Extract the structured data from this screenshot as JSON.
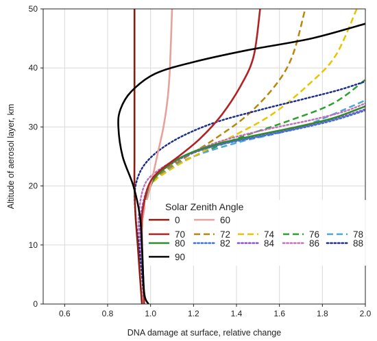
{
  "chart_data": {
    "type": "line",
    "title": "",
    "xlabel": "DNA damage at surface, relative change",
    "ylabel": "Altitude of aerosol layer, km",
    "xlim": [
      0.5,
      2.0
    ],
    "ylim": [
      0,
      50
    ],
    "xticks": [
      0.6,
      0.8,
      1.0,
      1.2,
      1.4,
      1.6,
      1.8,
      2.0
    ],
    "xtick_labels": [
      "0.6",
      "0.8",
      "1.0",
      "1.2",
      "1.4",
      "1.6",
      "1.8",
      "2.0"
    ],
    "yticks": [
      0,
      10,
      20,
      30,
      40,
      50
    ],
    "ytick_labels": [
      "0",
      "10",
      "20",
      "30",
      "40",
      "50"
    ],
    "grid": true,
    "legend": {
      "title": "Solar Zenith Angle",
      "placement": "center-right"
    },
    "series": [
      {
        "name": "0",
        "color": "#8b1a10",
        "dash": "solid",
        "x": [
          0.96,
          0.95,
          0.94,
          0.93,
          0.925,
          0.925,
          0.925,
          0.925,
          0.925
        ],
        "y": [
          0,
          5,
          10,
          15,
          20,
          25,
          30,
          40,
          50
        ]
      },
      {
        "name": "60",
        "color": "#e8a09a",
        "dash": "solid",
        "x": [
          0.97,
          0.965,
          0.96,
          0.965,
          1.0,
          1.03,
          1.06,
          1.08,
          1.09,
          1.1
        ],
        "y": [
          0,
          5,
          10,
          15,
          20,
          25,
          30,
          35,
          40,
          50
        ]
      },
      {
        "name": "70",
        "color": "#b22222",
        "dash": "solid",
        "x": [
          0.97,
          0.965,
          0.96,
          0.96,
          0.99,
          1.04,
          1.13,
          1.23,
          1.33,
          1.42,
          1.48,
          1.51
        ],
        "y": [
          0,
          5,
          10,
          15,
          20,
          22.5,
          25,
          28,
          32,
          37,
          42,
          50
        ]
      },
      {
        "name": "72",
        "color": "#b8860b",
        "dash": "dash",
        "x": [
          0.97,
          0.965,
          0.96,
          0.965,
          1.0,
          1.06,
          1.17,
          1.3,
          1.45,
          1.58,
          1.66,
          1.72
        ],
        "y": [
          0,
          5,
          10,
          15,
          20,
          22.5,
          25,
          28,
          32,
          37,
          42,
          50
        ]
      },
      {
        "name": "74",
        "color": "#e8c400",
        "dash": "dash",
        "x": [
          0.97,
          0.965,
          0.96,
          0.965,
          1.0,
          1.08,
          1.2,
          1.36,
          1.56,
          1.73,
          1.86,
          1.96
        ],
        "y": [
          0,
          5,
          10,
          15,
          20,
          22.5,
          25,
          28,
          32,
          37,
          42,
          50
        ]
      },
      {
        "name": "76",
        "color": "#2ca02c",
        "dash": "dash",
        "x": [
          0.97,
          0.965,
          0.96,
          0.965,
          1.0,
          1.07,
          1.2,
          1.4,
          1.64,
          1.85,
          2.0
        ],
        "y": [
          0,
          5,
          10,
          15,
          20,
          22.5,
          25,
          28,
          31,
          34,
          38
        ]
      },
      {
        "name": "78",
        "color": "#4aa8d8",
        "dash": "dash",
        "x": [
          0.97,
          0.965,
          0.96,
          0.965,
          1.0,
          1.07,
          1.2,
          1.42,
          1.7,
          2.0
        ],
        "y": [
          0,
          5,
          10,
          15,
          20,
          22.5,
          25,
          27.5,
          30,
          34.5
        ]
      },
      {
        "name": "80",
        "color": "#2e8b2e",
        "dash": "solid",
        "x": [
          0.97,
          0.965,
          0.96,
          0.965,
          1.0,
          1.05,
          1.15,
          1.3,
          1.48,
          1.68,
          1.85,
          2.0
        ],
        "y": [
          0,
          5,
          10,
          15,
          20,
          22.5,
          25,
          27,
          28.5,
          30,
          31.5,
          33.5
        ]
      },
      {
        "name": "82",
        "color": "#3d6fd6",
        "dash": "dot",
        "x": [
          0.97,
          0.965,
          0.96,
          0.965,
          1.0,
          1.05,
          1.15,
          1.3,
          1.5,
          1.7,
          1.86,
          2.0
        ],
        "y": [
          0,
          5,
          10,
          15,
          20,
          22.5,
          25,
          26.8,
          28.3,
          29.8,
          31.2,
          32.8
        ]
      },
      {
        "name": "84",
        "color": "#8a4fd0",
        "dash": "dot",
        "x": [
          0.97,
          0.965,
          0.955,
          0.955,
          0.99,
          1.05,
          1.16,
          1.32,
          1.52,
          1.72,
          1.88,
          2.0
        ],
        "y": [
          0,
          5,
          10,
          15,
          20,
          22.5,
          25,
          27,
          28.6,
          30.1,
          31.6,
          33
        ]
      },
      {
        "name": "86",
        "color": "#c070b8",
        "dash": "dot",
        "x": [
          0.97,
          0.96,
          0.95,
          0.945,
          0.97,
          1.03,
          1.15,
          1.32,
          1.53,
          1.75,
          1.9,
          2.0
        ],
        "y": [
          0,
          5,
          10,
          15,
          20,
          22.5,
          25,
          27.5,
          29.5,
          31.2,
          32.6,
          34
        ]
      },
      {
        "name": "88",
        "color": "#1c2c8c",
        "dash": "dot",
        "x": [
          0.97,
          0.96,
          0.945,
          0.93,
          0.93,
          0.98,
          1.1,
          1.28,
          1.5,
          1.72,
          1.88,
          2.0
        ],
        "y": [
          0,
          5,
          10,
          15,
          20,
          24,
          27.5,
          30.5,
          32.8,
          34.8,
          36.3,
          37.7
        ]
      },
      {
        "name": "90",
        "color": "#000000",
        "dash": "solid",
        "x": [
          0.99,
          0.97,
          0.96,
          0.95,
          0.92,
          0.87,
          0.85,
          0.86,
          0.91,
          1.02,
          1.2,
          1.45,
          1.75,
          2.0
        ],
        "y": [
          0,
          2,
          10,
          15,
          20,
          25,
          30,
          33,
          36,
          39,
          41,
          43,
          45,
          47.5
        ]
      }
    ]
  }
}
